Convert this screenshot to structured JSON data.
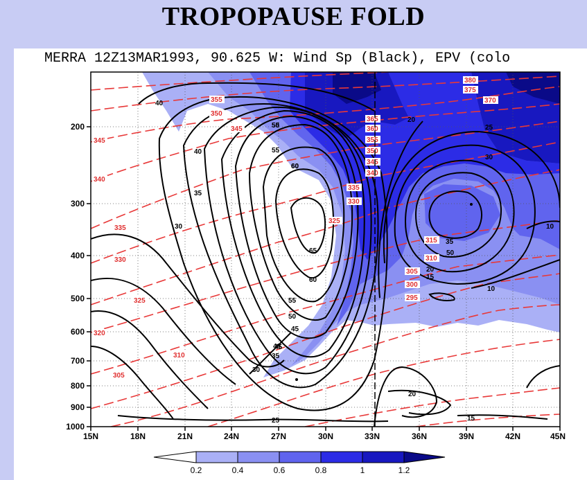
{
  "slide": {
    "title": "TROPOPAUSE FOLD"
  },
  "chart_data": {
    "type": "contour",
    "title": "MERRA 12Z13MAR1993, 90.625 W: Wind Sp (Black), EPV (colo",
    "xlabel": "",
    "ylabel": "",
    "x_ticks": [
      "15N",
      "18N",
      "21N",
      "24N",
      "27N",
      "30N",
      "33N",
      "36N",
      "39N",
      "42N",
      "45N"
    ],
    "x_range": [
      15,
      45
    ],
    "y_ticks": [
      200,
      300,
      400,
      500,
      600,
      700,
      800,
      900,
      1000
    ],
    "y_range_hpa": [
      130,
      1000
    ],
    "y_scale": "log-pressure",
    "grid": "dotted",
    "colorbar": {
      "levels": [
        "0.2",
        "0.4",
        "0.6",
        "0.8",
        "1",
        "1.2"
      ],
      "colors": [
        "#ffffff",
        "#aab0f6",
        "#8a90f2",
        "#6064ee",
        "#2c2ce6",
        "#1818c0",
        "#0a0a88"
      ]
    },
    "wind_speed_labels": [
      "40",
      "45",
      "50",
      "55",
      "60",
      "65",
      "60",
      "55",
      "50",
      "45",
      "40",
      "35",
      "30",
      "35",
      "30",
      "25",
      "20",
      "15",
      "10",
      "20",
      "25",
      "30",
      "35",
      "10",
      "15",
      "20",
      "50",
      "55",
      "60",
      "40"
    ],
    "epv_theta_labels": [
      "380",
      "375",
      "370",
      "365",
      "360",
      "355",
      "350",
      "345",
      "340",
      "335",
      "330",
      "325",
      "355",
      "350",
      "345",
      "345",
      "340",
      "335",
      "330",
      "325",
      "320",
      "315",
      "310",
      "305",
      "300",
      "295",
      "310",
      "305"
    ]
  }
}
